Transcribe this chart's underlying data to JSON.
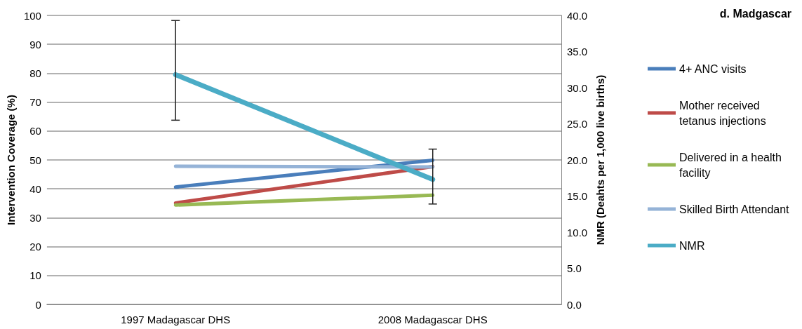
{
  "chart_data": {
    "type": "line",
    "title": "d. Madgascar",
    "ylabel": "Intervention Coverage (%)",
    "y2label": "NMR (Deahts per 1,000 live births)",
    "categories": [
      "1997 Madagascar DHS",
      "2008 Madagascar DHS"
    ],
    "series": [
      {
        "name": "4+ ANC visits",
        "color": "#4a7ebb",
        "values": [
          40.6,
          49.9
        ]
      },
      {
        "name": "Mother received tetanus injections",
        "color": "#be4b48",
        "values": [
          35.1,
          47.7
        ]
      },
      {
        "name": "Delivered in a health facility",
        "color": "#98b954",
        "values": [
          34.4,
          37.8
        ]
      },
      {
        "name": "Skilled Birth Attendant",
        "color": "#95b3d7",
        "values": [
          47.8,
          47.6
        ]
      },
      {
        "name": "NMR",
        "color": "#4bacc6",
        "values": [
          31.8,
          17.3
        ],
        "axis": "y2",
        "errors": [
          [
            25.5,
            39.3
          ],
          [
            13.9,
            21.5
          ]
        ]
      }
    ],
    "ylim": [
      0,
      100
    ],
    "yticks": [
      0,
      10,
      20,
      30,
      40,
      50,
      60,
      70,
      80,
      90,
      100
    ],
    "y2lim": [
      0,
      40
    ],
    "y2ticks": [
      {
        "value": 0,
        "label": "0.0"
      },
      {
        "value": 5,
        "label": "5.0"
      },
      {
        "value": 10,
        "label": "10.0"
      },
      {
        "value": 15,
        "label": "15.0"
      },
      {
        "value": 20,
        "label": "20.0"
      },
      {
        "value": 25,
        "label": "25.0"
      },
      {
        "value": 30,
        "label": "30.0"
      },
      {
        "value": 35,
        "label": "35.0"
      },
      {
        "value": 40,
        "label": "40.0"
      }
    ],
    "grid": "y",
    "legend": "right",
    "marker": "none",
    "line_style": "solid"
  }
}
